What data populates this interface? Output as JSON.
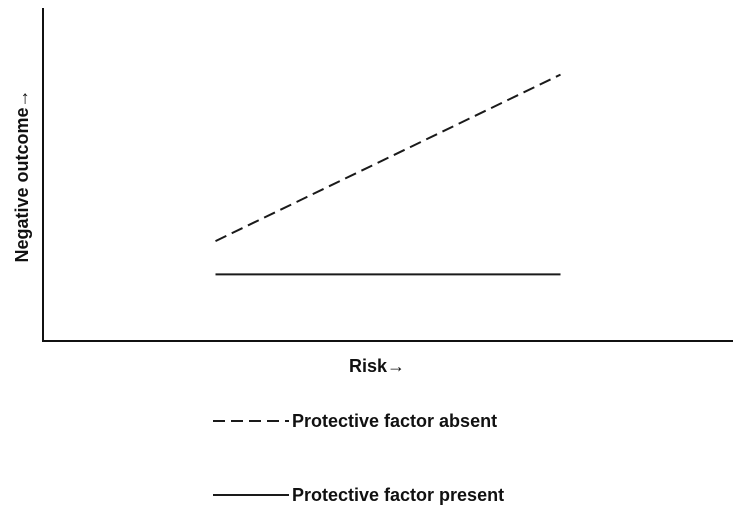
{
  "chart_data": {
    "type": "line",
    "title": "",
    "xlabel": "Risk→",
    "ylabel": "Negative outcome→",
    "xlim": [
      0,
      1
    ],
    "ylim": [
      0,
      1
    ],
    "grid": false,
    "axis_ticks": false,
    "legend_position": "bottom",
    "series": [
      {
        "name": "Protective factor absent",
        "style": "dashed",
        "color": "#1a1a1a",
        "x": [
          0.25,
          0.75
        ],
        "y": [
          0.3,
          0.8
        ]
      },
      {
        "name": "Protective factor present",
        "style": "solid",
        "color": "#1a1a1a",
        "x": [
          0.25,
          0.75
        ],
        "y": [
          0.2,
          0.2
        ]
      }
    ]
  }
}
